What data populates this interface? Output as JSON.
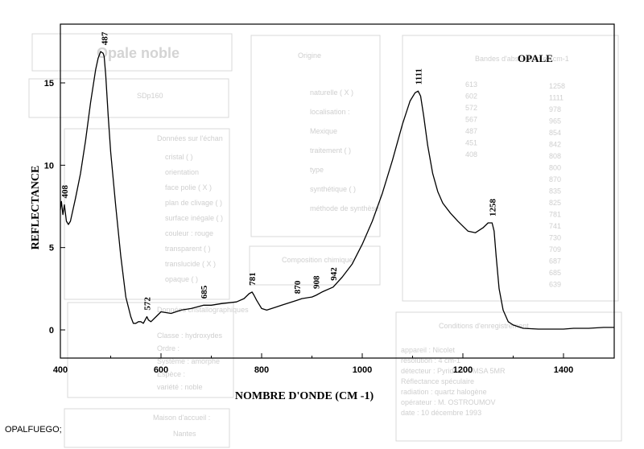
{
  "chart_data": {
    "type": "line",
    "title": "OPALE",
    "xlabel": "NOMBRE D'ONDE (CM -1)",
    "ylabel": "REFLECTANCE",
    "xlim": [
      400,
      1500
    ],
    "ylim": [
      -1,
      18
    ],
    "x_ticks": [
      "400",
      "600",
      "800",
      "1000",
      "1200",
      "1400"
    ],
    "y_ticks": [
      "0",
      "5",
      "10",
      "15"
    ],
    "grid": false,
    "series": [
      {
        "x": [
          400,
          402,
          405,
          408,
          412,
          416,
          420,
          430,
          440,
          450,
          460,
          470,
          475,
          480,
          485,
          487,
          490,
          495,
          500,
          510,
          520,
          530,
          540,
          545,
          550,
          555,
          560,
          565,
          570,
          572,
          575,
          580,
          590,
          600,
          620,
          640,
          660,
          685,
          700,
          720,
          750,
          765,
          775,
          781,
          785,
          790,
          800,
          810,
          820,
          840,
          860,
          870,
          880,
          900,
          908,
          920,
          942,
          960,
          980,
          1000,
          1020,
          1040,
          1060,
          1080,
          1095,
          1105,
          1111,
          1116,
          1122,
          1130,
          1140,
          1150,
          1160,
          1175,
          1190,
          1200,
          1210,
          1225,
          1240,
          1250,
          1258,
          1262,
          1266,
          1272,
          1280,
          1290,
          1300,
          1320,
          1350,
          1380,
          1400,
          1420,
          1450,
          1480,
          1500
        ],
        "y": [
          7.3,
          7.8,
          7.0,
          7.6,
          6.6,
          6.4,
          6.6,
          8.0,
          9.5,
          11.5,
          13.8,
          15.8,
          16.5,
          16.9,
          16.8,
          16.6,
          15.5,
          13.0,
          10.8,
          7.5,
          4.5,
          2.0,
          0.8,
          0.4,
          0.4,
          0.5,
          0.5,
          0.4,
          0.7,
          0.8,
          0.6,
          0.5,
          0.8,
          1.1,
          1.0,
          1.2,
          1.3,
          1.5,
          1.5,
          1.6,
          1.7,
          1.9,
          2.2,
          2.3,
          2.1,
          1.8,
          1.3,
          1.2,
          1.3,
          1.5,
          1.7,
          1.8,
          1.9,
          2.0,
          2.1,
          2.3,
          2.6,
          3.2,
          4.0,
          5.2,
          6.6,
          8.3,
          10.3,
          12.5,
          13.9,
          14.4,
          14.5,
          14.2,
          13.0,
          11.2,
          9.5,
          8.4,
          7.7,
          7.1,
          6.6,
          6.3,
          6.0,
          5.9,
          6.2,
          6.5,
          6.5,
          6.0,
          4.5,
          2.5,
          1.2,
          0.5,
          0.3,
          0.1,
          0.05,
          0.05,
          0.05,
          0.1,
          0.1,
          0.15,
          0.15
        ]
      }
    ],
    "peak_labels": [
      {
        "text": "408",
        "x": 408,
        "y": 7.6
      },
      {
        "text": "487",
        "x": 487,
        "y": 16.9
      },
      {
        "text": "572",
        "x": 572,
        "y": 0.8
      },
      {
        "text": "685",
        "x": 685,
        "y": 1.5
      },
      {
        "text": "781",
        "x": 781,
        "y": 2.3
      },
      {
        "text": "870",
        "x": 870,
        "y": 1.8
      },
      {
        "text": "908",
        "x": 908,
        "y": 2.1
      },
      {
        "text": "942",
        "x": 942,
        "y": 2.6
      },
      {
        "text": "1111",
        "x": 1111,
        "y": 14.5
      },
      {
        "text": "1258",
        "x": 1258,
        "y": 6.5
      }
    ]
  },
  "footer": {
    "label": "OPALFUEGO;"
  },
  "background_form": {
    "title": "Opale noble",
    "ref": "SDp160",
    "origine": "Origine",
    "origine_lines": [
      "naturelle ( X )",
      "localisation :",
      "Mexique",
      "traitement ( )",
      "type",
      "synthétique ( )",
      "méthode de synthèse"
    ],
    "donnees": "Données sur l'échan",
    "donnees_lines": [
      "cristal ( )",
      "orientation",
      "face polie ( X )",
      "plan de clivage ( )",
      "surface inégale ( )",
      "couleur : rouge",
      "transparent ( )",
      "translucide ( X )",
      "opaque ( )"
    ],
    "bandes": "Bandes d'absorption en cm-1",
    "bandes_col1": [
      "1258",
      "1111",
      "978",
      "965",
      "854",
      "842",
      "808",
      "800",
      "870",
      "835",
      "825",
      "781",
      "741",
      "730",
      "709",
      "687",
      "685",
      "639"
    ],
    "bandes_col2": [
      "613",
      "602",
      "572",
      "567",
      "487",
      "451",
      "408"
    ],
    "composition": "Composition chimique",
    "donnees_cristallo": "Données cristallographiques",
    "cristallo_lines": [
      "Classe : hydroxydes",
      "Ordre :",
      "Système : amorphe",
      "Espèce :",
      "variété : noble"
    ],
    "conditions": "Conditions d'enregistrement",
    "conditions_lines": [
      "appareil : Nicolet",
      "résolution : 4 cm-1",
      "détecteur : Pyridium CMSA 5MR",
      "Réflectance spéculaire",
      "radiation : quartz halogène",
      "opérateur : M. OSTROUMOV",
      "date : 10 décembre 1993"
    ],
    "maison": "Maison d'accueil :",
    "nantes": "Nantes"
  }
}
